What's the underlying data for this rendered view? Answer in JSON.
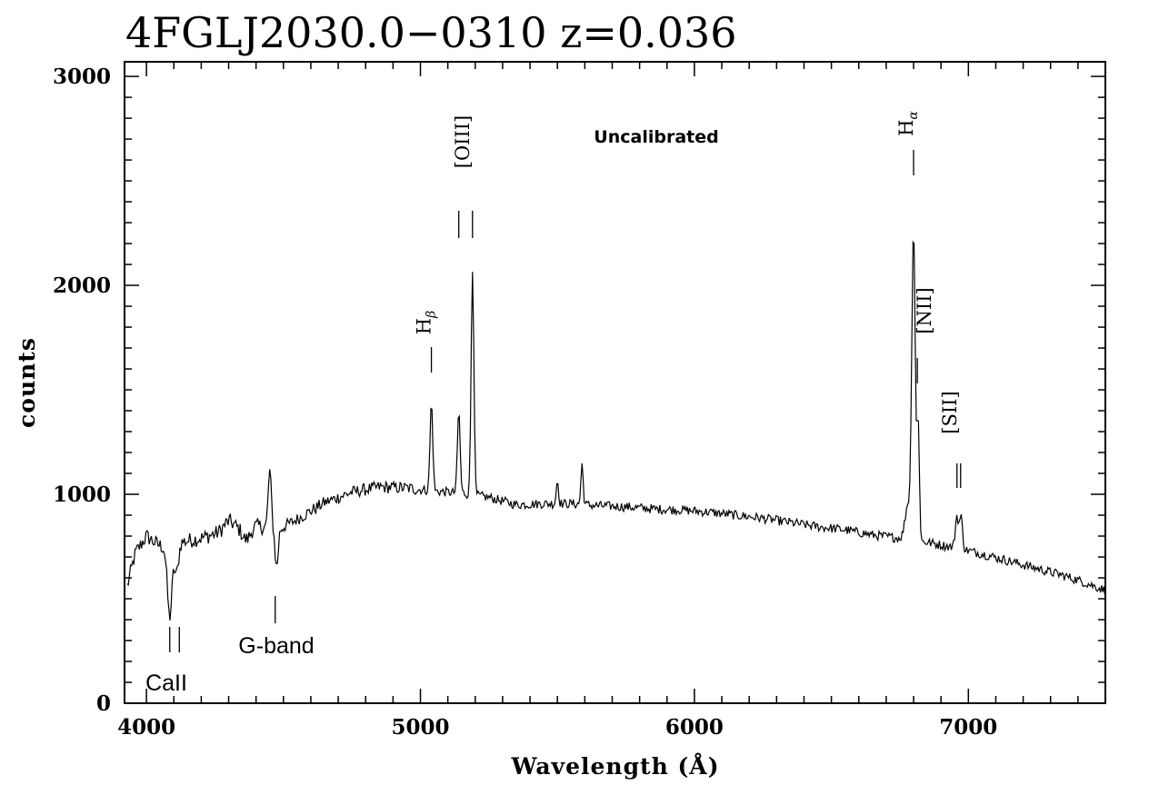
{
  "chart_data": {
    "type": "line",
    "title": "4FGLJ2030.0−0310 z=0.036",
    "xlabel": "Wavelength (Å)",
    "ylabel": "counts",
    "xlim": [
      3920,
      7500
    ],
    "ylim": [
      0,
      3070
    ],
    "x_ticks": [
      4000,
      5000,
      6000,
      7000
    ],
    "y_ticks": [
      0,
      1000,
      2000,
      3000
    ],
    "annotation": "Uncalibrated",
    "continuum": [
      [
        3930,
        560
      ],
      [
        3960,
        720
      ],
      [
        4000,
        800
      ],
      [
        4040,
        760
      ],
      [
        4080,
        740
      ],
      [
        4120,
        770
      ],
      [
        4200,
        790
      ],
      [
        4300,
        830
      ],
      [
        4400,
        850
      ],
      [
        4480,
        830
      ],
      [
        4550,
        880
      ],
      [
        4650,
        960
      ],
      [
        4750,
        1010
      ],
      [
        4850,
        1035
      ],
      [
        4950,
        1030
      ],
      [
        5050,
        1015
      ],
      [
        5150,
        1005
      ],
      [
        5250,
        985
      ],
      [
        5350,
        950
      ],
      [
        5450,
        955
      ],
      [
        5550,
        955
      ],
      [
        5650,
        945
      ],
      [
        5750,
        940
      ],
      [
        5850,
        930
      ],
      [
        5950,
        925
      ],
      [
        6050,
        915
      ],
      [
        6150,
        900
      ],
      [
        6250,
        885
      ],
      [
        6350,
        865
      ],
      [
        6450,
        845
      ],
      [
        6550,
        830
      ],
      [
        6650,
        805
      ],
      [
        6750,
        790
      ],
      [
        6850,
        770
      ],
      [
        6950,
        745
      ],
      [
        7050,
        715
      ],
      [
        7150,
        680
      ],
      [
        7250,
        645
      ],
      [
        7350,
        610
      ],
      [
        7420,
        580
      ],
      [
        7500,
        540
      ]
    ],
    "features": [
      {
        "x": 4085,
        "h": -330,
        "w": 12
      },
      {
        "x": 4110,
        "h": -140,
        "w": 10
      },
      {
        "x": 4300,
        "h": 40,
        "w": 25
      },
      {
        "x": 4450,
        "h": 270,
        "w": 8
      },
      {
        "x": 4475,
        "h": -180,
        "w": 8
      },
      {
        "x": 4365,
        "h": -60,
        "w": 20
      },
      {
        "x": 5040,
        "h": 420,
        "w": 7
      },
      {
        "x": 5140,
        "h": 390,
        "w": 7
      },
      {
        "x": 5190,
        "h": 1090,
        "w": 7
      },
      {
        "x": 5590,
        "h": 190,
        "w": 6
      },
      {
        "x": 5500,
        "h": 110,
        "w": 6
      },
      {
        "x": 6780,
        "h": 170,
        "w": 15
      },
      {
        "x": 6800,
        "h": 1470,
        "w": 9
      },
      {
        "x": 6817,
        "h": 560,
        "w": 6
      },
      {
        "x": 6958,
        "h": 150,
        "w": 8
      },
      {
        "x": 6973,
        "h": 150,
        "w": 8
      }
    ],
    "emission_lines": [
      {
        "label": "H",
        "sub": "β",
        "x": 5040
      },
      {
        "label": "[OIII]",
        "x": 5140
      },
      {
        "label": "H",
        "sub": "α",
        "x": 6800
      },
      {
        "label": "[NII]",
        "x": 6817
      },
      {
        "label": "[SII]",
        "x": 6965
      }
    ],
    "absorption_lines": [
      {
        "label": "CaII",
        "x": [
          4085,
          4120
        ]
      },
      {
        "label": "G-band",
        "x": [
          4470
        ]
      }
    ]
  }
}
